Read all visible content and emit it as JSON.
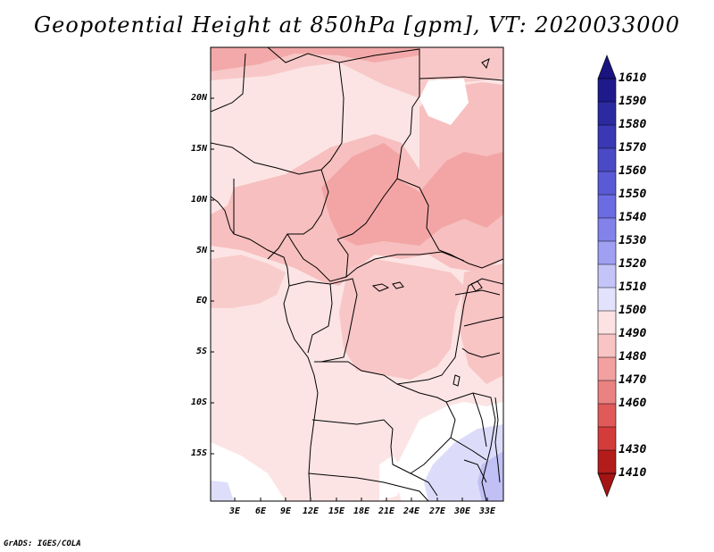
{
  "title": "Geopotential Height at 850hPa [gpm], VT: 2020033000",
  "footer": "GrADS: IGES/COLA",
  "map": {
    "variable": "Geopotential Height",
    "level": "850hPa",
    "units": "gpm",
    "valid_time": "2020033000",
    "lat_labels": [
      "20N",
      "15N",
      "10N",
      "5N",
      "EQ",
      "5S",
      "10S",
      "15S"
    ],
    "lon_labels": [
      "3E",
      "6E",
      "9E",
      "12E",
      "15E",
      "18E",
      "21E",
      "24E",
      "27E",
      "30E",
      "33E"
    ]
  },
  "colorbar": {
    "labels": [
      "1610",
      "1590",
      "1580",
      "1570",
      "1560",
      "1550",
      "1540",
      "1530",
      "1520",
      "1510",
      "1500",
      "1490",
      "1480",
      "1470",
      "1460",
      "1430",
      "1410"
    ],
    "colors": [
      "#1f1a8c",
      "#2b2aa0",
      "#3a38b4",
      "#4a4ac6",
      "#5a5ad6",
      "#6c6ce2",
      "#8282ea",
      "#a0a0f2",
      "#c4c4f8",
      "#e2e2fc",
      "#fce2e2",
      "#f8c4c4",
      "#f2a0a0",
      "#ea8282",
      "#e05a5a",
      "#d43c3c",
      "#c42c2c",
      "#b41c1c"
    ],
    "arrow_top": "#1a1480",
    "arrow_bottom": "#a41414"
  }
}
